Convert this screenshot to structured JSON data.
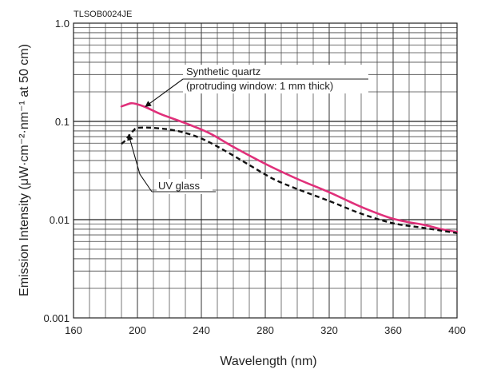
{
  "chart_data": {
    "type": "line",
    "code_label": "TLSOB0024JE",
    "xlabel": "Wavelength (nm)",
    "ylabel": "Emission Intensity (μW·cm⁻²·nm⁻¹ at 50 cm)",
    "x_scale": "linear",
    "y_scale": "log",
    "xlim": [
      160,
      400
    ],
    "ylim": [
      0.001,
      1.0
    ],
    "x_ticks": [
      160,
      200,
      240,
      280,
      320,
      360,
      400
    ],
    "x_tick_labels": [
      "160",
      "200",
      "240",
      "280",
      "320",
      "360",
      "400"
    ],
    "y_ticks": [
      0.001,
      0.01,
      0.1,
      1.0
    ],
    "y_tick_labels": [
      "0.001",
      "0.01",
      "0.1",
      "1.0"
    ],
    "grid": true,
    "series": [
      {
        "name": "Synthetic quartz",
        "name_line2": "(protruding window: 1 mm thick)",
        "color": "#e0307a",
        "style": "solid",
        "x": [
          190,
          193,
          196,
          199,
          205,
          215,
          230,
          245,
          260,
          280,
          300,
          320,
          340,
          360,
          380,
          390,
          400
        ],
        "y": [
          0.142,
          0.148,
          0.153,
          0.151,
          0.14,
          0.118,
          0.096,
          0.076,
          0.055,
          0.037,
          0.026,
          0.019,
          0.0135,
          0.0102,
          0.0088,
          0.008,
          0.0075
        ]
      },
      {
        "name": "UV glass",
        "color": "#111111",
        "style": "dashed",
        "x": [
          190,
          192,
          194,
          196,
          198,
          200,
          210,
          225,
          240,
          255,
          270,
          285,
          300,
          320,
          340,
          360,
          380,
          400
        ],
        "y": [
          0.059,
          0.063,
          0.069,
          0.076,
          0.082,
          0.086,
          0.086,
          0.08,
          0.067,
          0.05,
          0.036,
          0.026,
          0.0205,
          0.0155,
          0.0115,
          0.0092,
          0.0082,
          0.0073
        ]
      }
    ],
    "annotations": [
      {
        "series": "Synthetic quartz",
        "text_lines": [
          "Synthetic quartz",
          "(protruding window: 1 mm thick)"
        ],
        "arrow_to": [
          203,
          0.147
        ]
      },
      {
        "series": "UV glass",
        "text_lines": [
          "UV glass"
        ],
        "arrow_to": [
          194,
          0.079
        ]
      }
    ]
  }
}
